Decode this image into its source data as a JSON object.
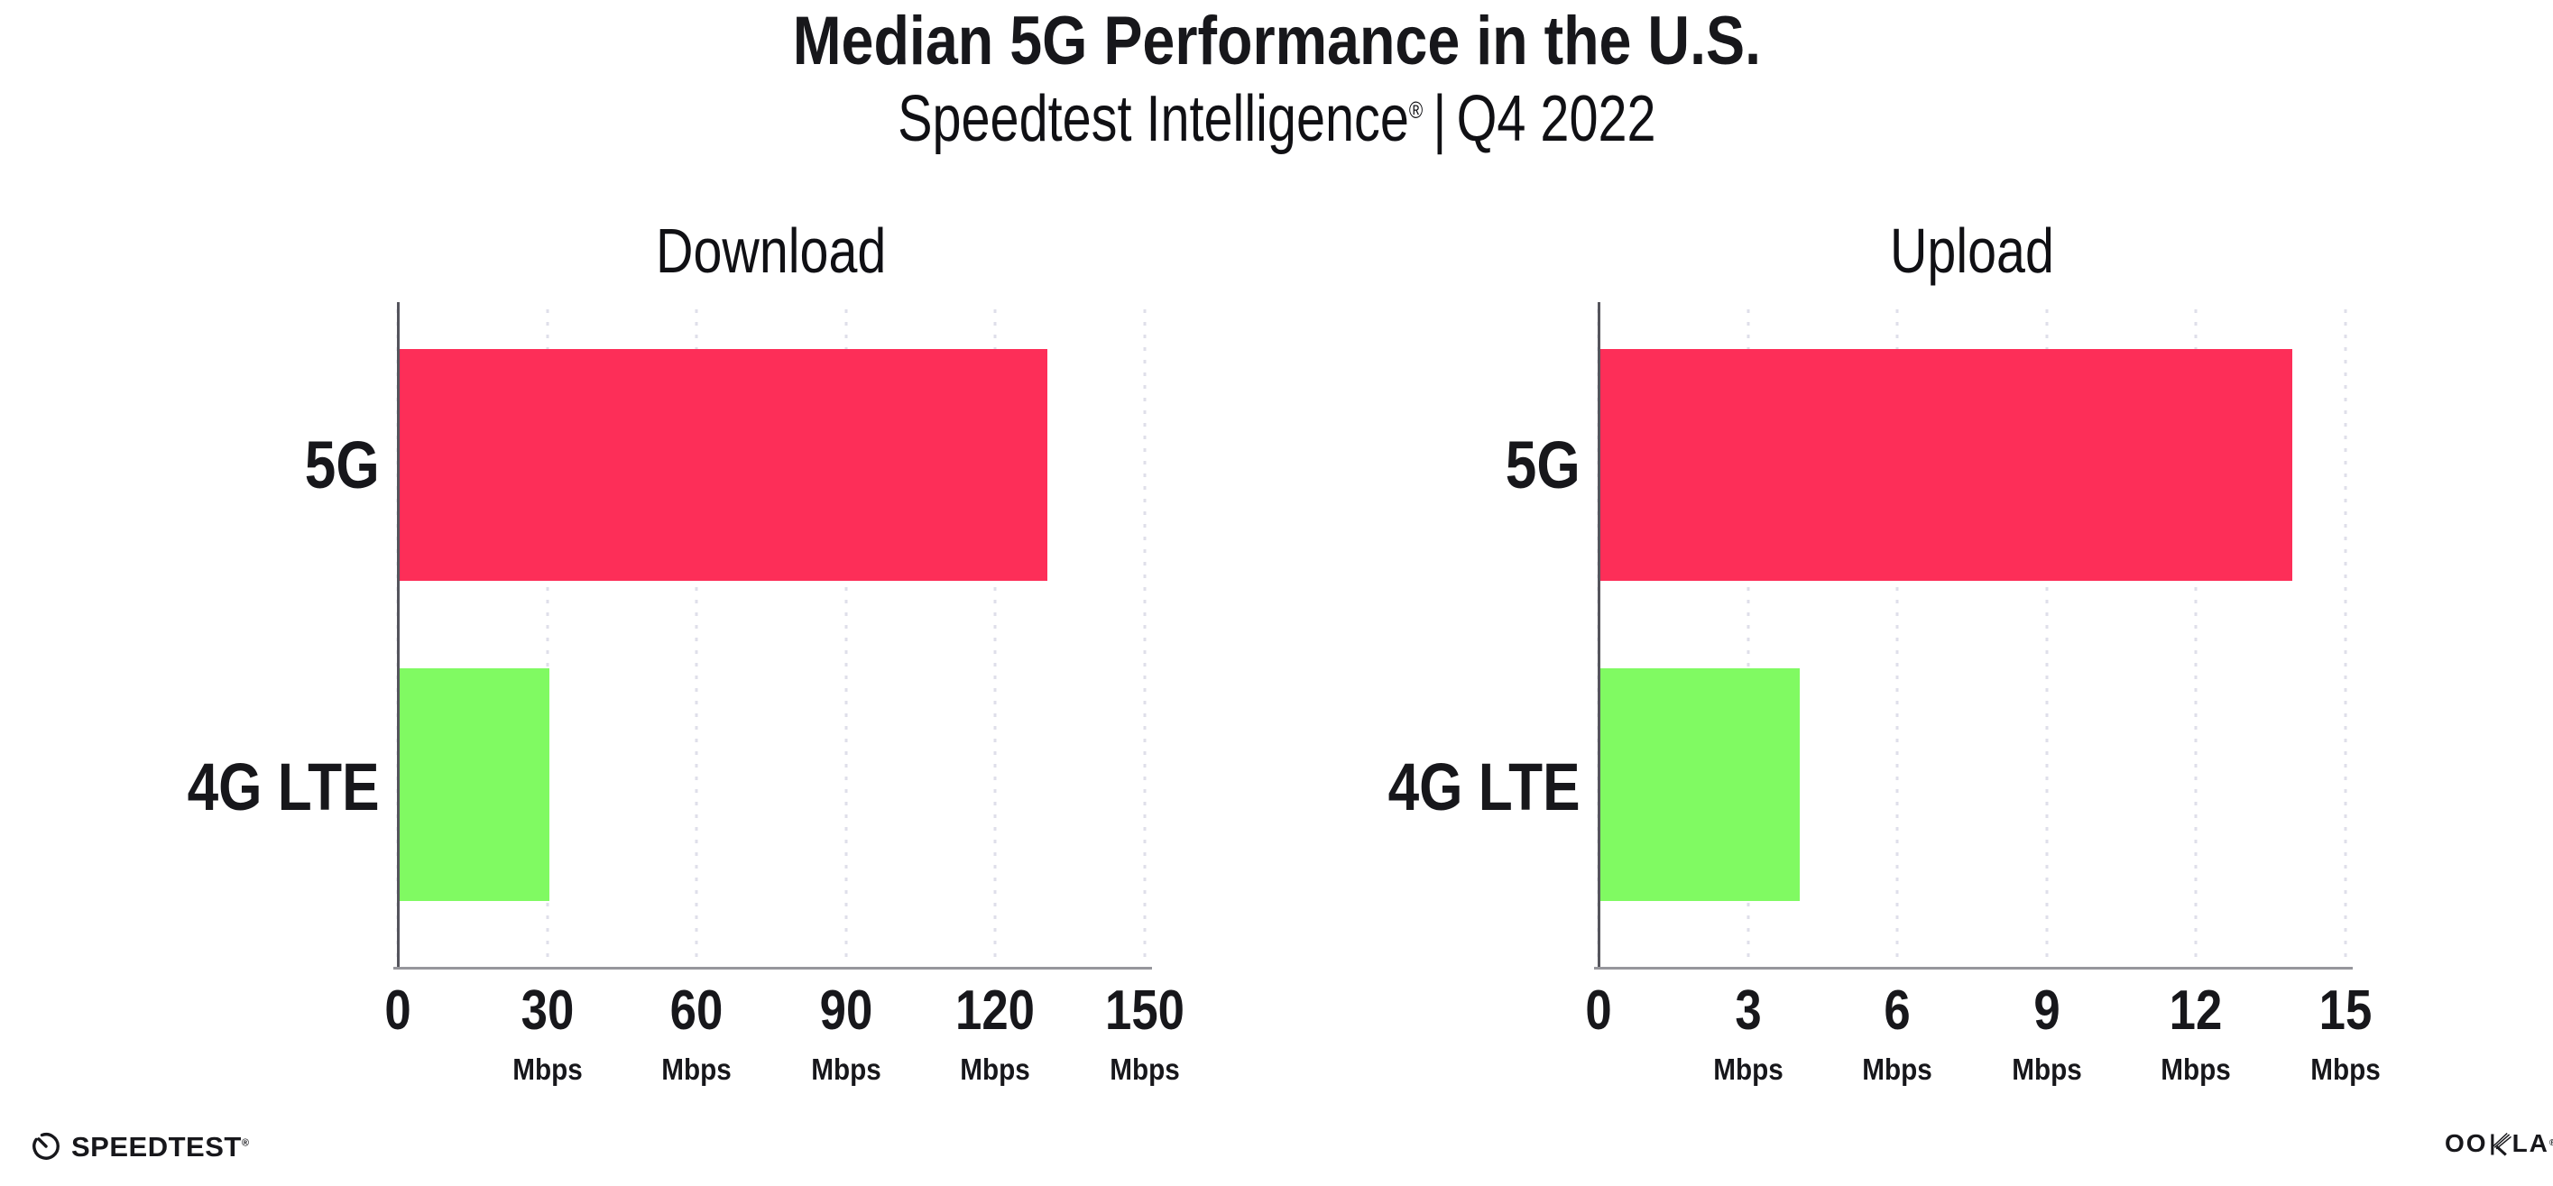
{
  "header": {
    "title": "Median 5G Performance in the U.S.",
    "subtitle": {
      "brand": "Speedtest Intelligence",
      "registered_mark": "®",
      "divider": "|",
      "period": "Q4 2022"
    }
  },
  "chart_data": [
    {
      "type": "bar",
      "orientation": "horizontal",
      "title": "Download",
      "categories": [
        "5G",
        "4G LTE"
      ],
      "values": [
        130,
        30
      ],
      "unit": "Mbps",
      "xlim": [
        0,
        150
      ],
      "ticks": [
        0,
        30,
        60,
        90,
        120,
        150
      ],
      "tick_unit": "Mbps",
      "bar_colors": [
        "#FD2E58",
        "#80FA62"
      ],
      "grid": "dotted-vertical",
      "legend": "none"
    },
    {
      "type": "bar",
      "orientation": "horizontal",
      "title": "Upload",
      "categories": [
        "5G",
        "4G LTE"
      ],
      "values": [
        13.9,
        4
      ],
      "unit": "Mbps",
      "xlim": [
        0,
        15
      ],
      "ticks": [
        0,
        3,
        6,
        9,
        12,
        15
      ],
      "tick_unit": "Mbps",
      "bar_colors": [
        "#FD2E58",
        "#80FA62"
      ],
      "grid": "dotted-vertical",
      "legend": "none"
    }
  ],
  "colors": {
    "bar_5g": "#FD2E58",
    "bar_4g_lte": "#80FA62",
    "axis": "#55555D",
    "baseline": "#96969C",
    "gridline": "#DFDFEA",
    "text": "#17171B",
    "background": "#FFFFFF"
  },
  "footer": {
    "speedtest_wordmark": "SPEEDTEST",
    "speedtest_mark": "®",
    "ookla_prefix": "OO",
    "ookla_suffix": "LA",
    "ookla_mark": "®"
  }
}
